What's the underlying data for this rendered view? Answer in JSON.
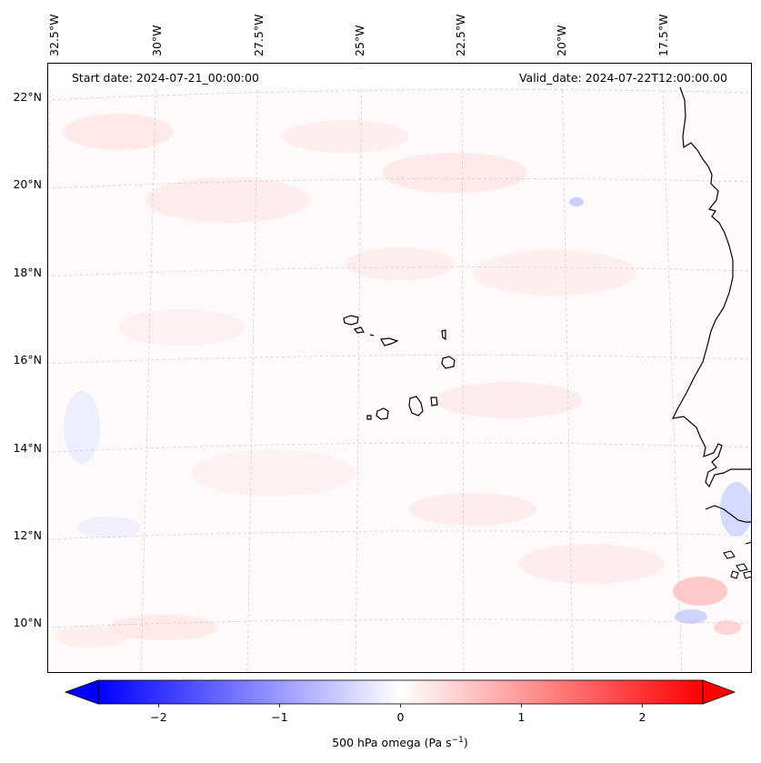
{
  "map": {
    "start_label": "Start date: 2024-07-21_00:00:00",
    "valid_label": "Valid_date: 2024-07-22T12:00:00.00",
    "lon_labels": [
      "32.5°W",
      "30°W",
      "27.5°W",
      "25°W",
      "22.5°W",
      "20°W",
      "17.5°W"
    ],
    "lat_labels": [
      "22°N",
      "20°N",
      "18°N",
      "16°N",
      "14°N",
      "12°N",
      "10°N"
    ],
    "gridlines": true,
    "colors": {
      "negative": "#0000ff",
      "positive": "#ff0000",
      "neutral": "#ffffff",
      "coastline": "#000000"
    }
  },
  "colorbar": {
    "title": "500 hPa omega (Pa s",
    "title_exponent": "−1",
    "title_suffix": ")",
    "min": -2.5,
    "max": 2.5,
    "ticks": [
      {
        "value": -2,
        "label": "−2"
      },
      {
        "value": -1,
        "label": "−1"
      },
      {
        "value": 0,
        "label": "0"
      },
      {
        "value": 1,
        "label": "1"
      },
      {
        "value": 2,
        "label": "2"
      }
    ],
    "extend": "both"
  }
}
